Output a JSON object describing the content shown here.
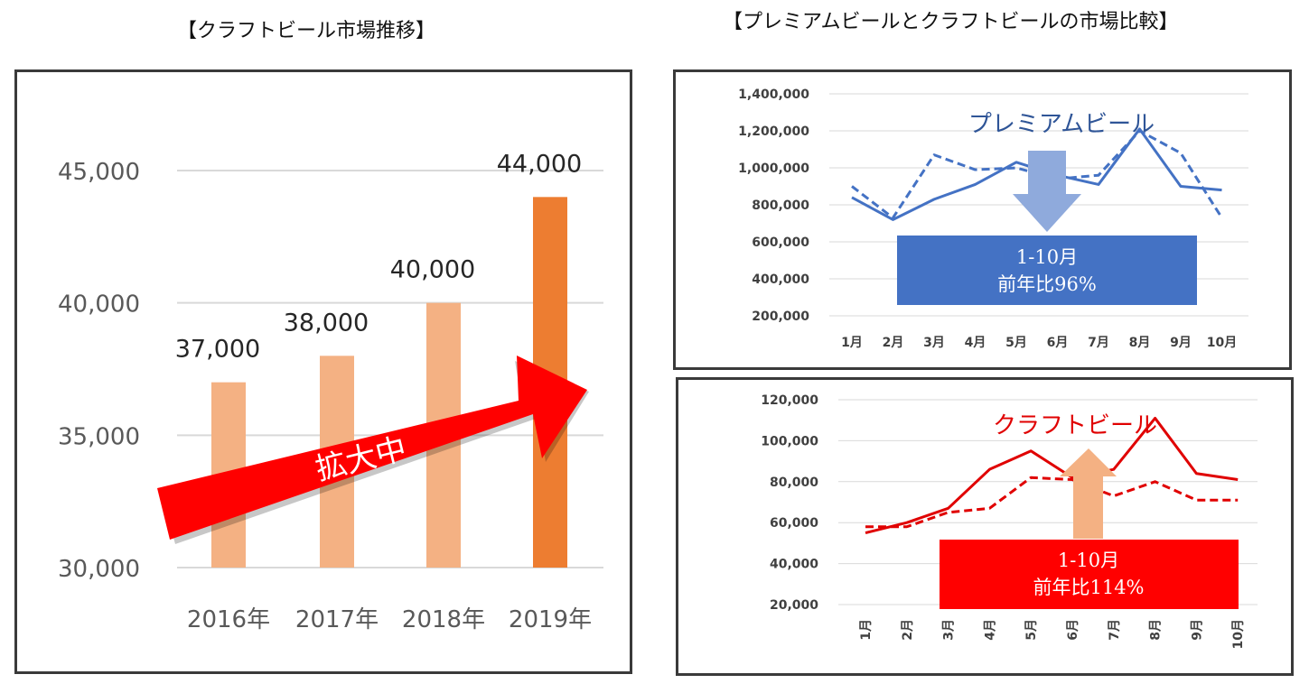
{
  "headings": {
    "left": "【クラフトビール市場推移】",
    "right": "【プレミアムビールとクラフトビールの市場比較】"
  },
  "colors": {
    "bar_light": "#f4b183",
    "bar_highlight": "#ed7d31",
    "arrow_red": "#ff0000",
    "premium_line": "#4472c4",
    "premium_box": "#4472c4",
    "premium_arrow": "#8faadc",
    "craft_line": "#e00000",
    "craft_box": "#ff0000",
    "craft_arrow": "#f4b183"
  },
  "chart_data": [
    {
      "id": "craft-market-trend",
      "type": "bar",
      "categories": [
        "2016年",
        "2017年",
        "2018年",
        "2019年"
      ],
      "values": [
        37000,
        38000,
        40000,
        44000
      ],
      "value_labels": [
        "37,000",
        "38,000",
        "40,000",
        "44,000"
      ],
      "highlight_index": 3,
      "ylim": [
        30000,
        45000
      ],
      "yticks": [
        30000,
        35000,
        40000,
        45000
      ],
      "ytick_labels": [
        "30,000",
        "35,000",
        "40,000",
        "45,000"
      ],
      "grid": true,
      "annotation": "拡大中"
    },
    {
      "id": "premium-beer",
      "type": "line",
      "categories": [
        "1月",
        "2月",
        "3月",
        "4月",
        "5月",
        "6月",
        "7月",
        "8月",
        "9月",
        "10月"
      ],
      "series": [
        {
          "style": "solid",
          "values": [
            840000,
            720000,
            830000,
            910000,
            1030000,
            960000,
            910000,
            1210000,
            900000,
            880000
          ]
        },
        {
          "style": "dashed",
          "values": [
            900000,
            730000,
            1070000,
            990000,
            1000000,
            940000,
            960000,
            1200000,
            1080000,
            730000
          ]
        }
      ],
      "ylim": [
        200000,
        1400000
      ],
      "yticks": [
        200000,
        400000,
        600000,
        800000,
        1000000,
        1200000,
        1400000
      ],
      "ytick_labels": [
        "200,000",
        "400,000",
        "600,000",
        "800,000",
        "1,000,000",
        "1,200,000",
        "1,400,000"
      ],
      "annotation_label": "プレミアムビール",
      "annotation_box": [
        "1-10月",
        "前年比96%"
      ]
    },
    {
      "id": "craft-beer",
      "type": "line",
      "categories": [
        "1月",
        "2月",
        "3月",
        "4月",
        "5月",
        "6月",
        "7月",
        "8月",
        "9月",
        "10月"
      ],
      "series": [
        {
          "style": "solid",
          "values": [
            55000,
            60000,
            67000,
            86000,
            95000,
            82000,
            86000,
            111000,
            84000,
            81000
          ]
        },
        {
          "style": "dashed",
          "values": [
            58000,
            58000,
            65000,
            67000,
            82000,
            81000,
            73000,
            80000,
            71000,
            71000
          ]
        }
      ],
      "ylim": [
        20000,
        120000
      ],
      "yticks": [
        20000,
        40000,
        60000,
        80000,
        100000,
        120000
      ],
      "ytick_labels": [
        "20,000",
        "40,000",
        "60,000",
        "80,000",
        "100,000",
        "120,000"
      ],
      "annotation_label": "クラフトビール",
      "annotation_box": [
        "1-10月",
        "前年比114%"
      ]
    }
  ]
}
